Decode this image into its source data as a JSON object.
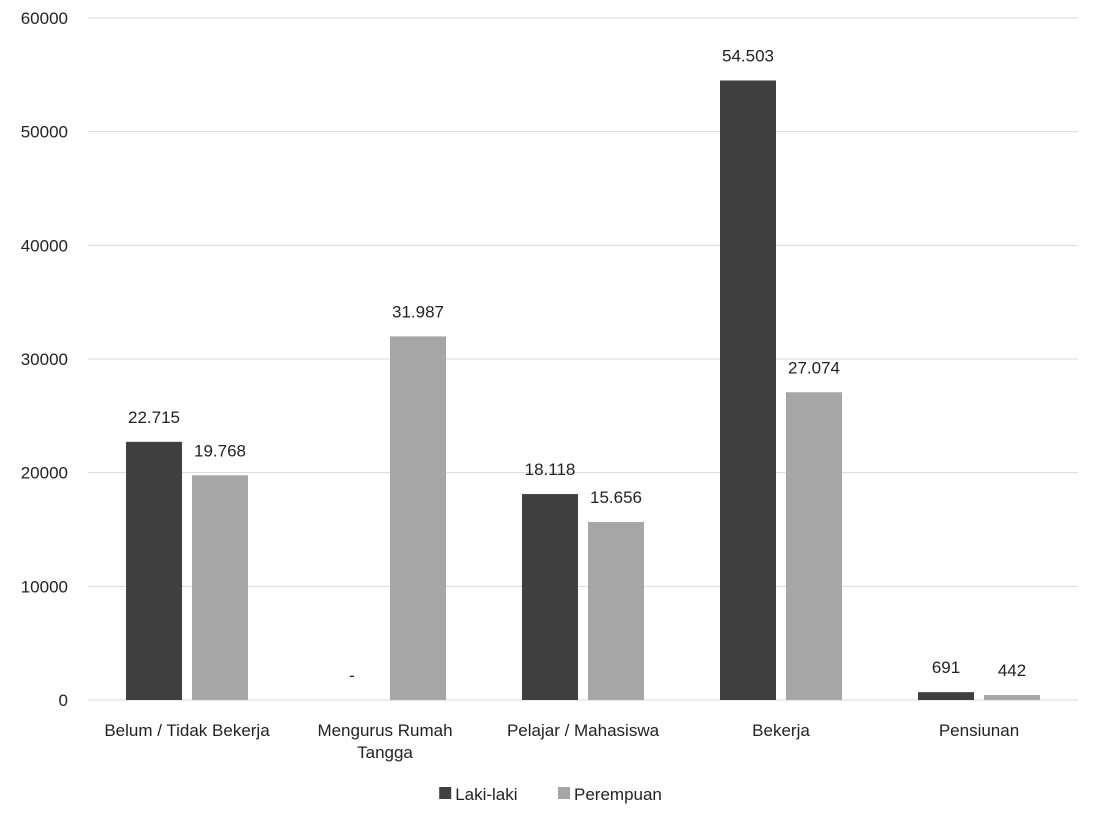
{
  "chart_data": {
    "type": "bar",
    "categories": [
      [
        "Belum / Tidak Bekerja"
      ],
      [
        "Mengurus Rumah",
        "Tangga"
      ],
      [
        "Pelajar / Mahasiswa"
      ],
      [
        "Bekerja"
      ],
      [
        "Pensiunan"
      ]
    ],
    "series": [
      {
        "name": "Laki-laki",
        "color": "#404040",
        "values": [
          22715,
          0,
          18118,
          54503,
          691
        ],
        "labels": [
          "22.715",
          "-",
          "18.118",
          "54.503",
          "691"
        ]
      },
      {
        "name": "Perempuan",
        "color": "#a6a6a6",
        "values": [
          19768,
          31987,
          15656,
          27074,
          442
        ],
        "labels": [
          "19.768",
          "31.987",
          "15.656",
          "27.074",
          "442"
        ]
      }
    ],
    "yticks": [
      "0",
      "10000",
      "20000",
      "30000",
      "40000",
      "50000",
      "60000"
    ],
    "ylim": [
      0,
      60000
    ],
    "grid": true,
    "legend": "bottom-center",
    "title": "",
    "xlabel": "",
    "ylabel": ""
  }
}
